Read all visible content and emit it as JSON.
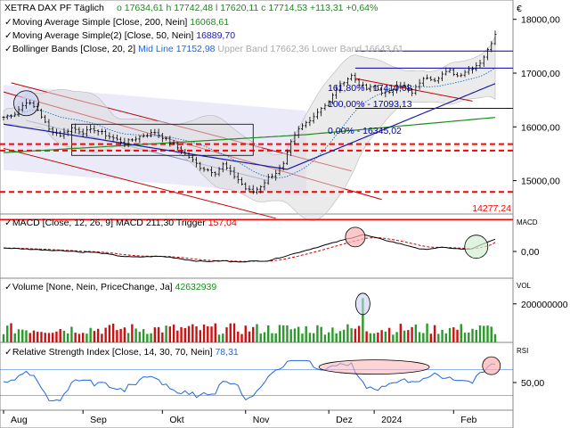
{
  "header": {
    "instrument": "XETRA DAX PF",
    "period": "Täglich",
    "open": "o 17634,61",
    "high": "h 17742,48",
    "low": "l 17620,11",
    "close": "c 17714,53",
    "change": "+113,31",
    "change_pct": "+0,64%",
    "legend": [
      {
        "label": "Moving Average Simple",
        "params": "[Close, 200, Nein]",
        "value": "16068,61",
        "color": "#1a8c1a"
      },
      {
        "label": "Moving Average Simple(2)",
        "params": "[Close, 50, Nein]",
        "value": "16889,70",
        "color": "#1a1aa8"
      },
      {
        "label": "Bollinger Bands",
        "params": "[Close, 20, 2]",
        "mid_label": "Mid Line",
        "mid_value": "17152,98",
        "upper_label": "Upper Band",
        "upper_value": "17662,36",
        "lower_label": "Lower Band",
        "lower_value": "16643,61"
      }
    ],
    "euro_symbol": "€"
  },
  "fib_labels": {
    "level_1618": "161,80% - 17410,08",
    "level_100": "100,00% - 17093,13",
    "level_0": "0,00% - 16345,02"
  },
  "support_label": "14277,24",
  "macd": {
    "title": "MACD",
    "params": "[Close, 12, 26, 9]",
    "macd_label": "MACD",
    "macd_value": "211,30",
    "trigger_label": "Trigger",
    "trigger_value": "157,04",
    "axis_tag": "MACD"
  },
  "volume": {
    "title": "Volume",
    "params": "[None, Nein, PriceChange, Ja]",
    "value": "42632939",
    "axis_tag": "VOL"
  },
  "rsi": {
    "title": "Relative Strength Index",
    "params": "[Close, 14, 30, 70, Nein]",
    "value": "78,31",
    "axis_tag": "RSI"
  },
  "chart_data": {
    "type": "line",
    "x_labels": [
      "Aug",
      "Sep",
      "Okt",
      "Nov",
      "Dez",
      "2024",
      "Feb"
    ],
    "price_axis": {
      "ticks": [
        15000,
        16000,
        17000,
        18000
      ],
      "tick_labels": [
        "15000,00",
        "16000,00",
        "17000,00",
        "18000,00"
      ],
      "range": [
        14380,
        18260
      ]
    },
    "macd_axis": {
      "tick_labels": [
        "0,00"
      ],
      "range": [
        -400,
        400
      ]
    },
    "volume_axis": {
      "tick_labels": [
        "200000000"
      ],
      "range": [
        0,
        250000000
      ]
    },
    "rsi_axis": {
      "tick_labels": [
        "50,00"
      ],
      "range": [
        10,
        90
      ]
    },
    "price_anchors": [
      [
        0,
        16180
      ],
      [
        3,
        16250
      ],
      [
        6,
        16470
      ],
      [
        9,
        16320
      ],
      [
        12,
        15950
      ],
      [
        15,
        15850
      ],
      [
        18,
        15980
      ],
      [
        21,
        15900
      ],
      [
        24,
        15950
      ],
      [
        28,
        15820
      ],
      [
        32,
        15700
      ],
      [
        36,
        15820
      ],
      [
        40,
        15900
      ],
      [
        44,
        15720
      ],
      [
        48,
        15500
      ],
      [
        52,
        15250
      ],
      [
        56,
        15150
      ],
      [
        58,
        15300
      ],
      [
        60,
        15150
      ],
      [
        62,
        15020
      ],
      [
        64,
        14850
      ],
      [
        66,
        14790
      ],
      [
        68,
        14900
      ],
      [
        70,
        15050
      ],
      [
        72,
        15150
      ],
      [
        74,
        15300
      ],
      [
        76,
        15700
      ],
      [
        78,
        15950
      ],
      [
        80,
        16080
      ],
      [
        82,
        16200
      ],
      [
        84,
        16360
      ],
      [
        86,
        16450
      ],
      [
        88,
        16700
      ],
      [
        90,
        16850
      ],
      [
        92,
        16950
      ],
      [
        94,
        16800
      ],
      [
        96,
        16700
      ],
      [
        98,
        16750
      ],
      [
        100,
        16650
      ],
      [
        102,
        16620
      ],
      [
        104,
        16800
      ],
      [
        106,
        16750
      ],
      [
        108,
        16620
      ],
      [
        110,
        16830
      ],
      [
        112,
        16930
      ],
      [
        114,
        16880
      ],
      [
        116,
        16980
      ],
      [
        118,
        17040
      ],
      [
        120,
        16950
      ],
      [
        122,
        17030
      ],
      [
        124,
        17100
      ],
      [
        126,
        17200
      ],
      [
        128,
        17420
      ],
      [
        130,
        17720
      ]
    ],
    "horizontal_levels": [
      {
        "value": 15680,
        "style": "dashed",
        "color": "#ff0000"
      },
      {
        "value": 15560,
        "style": "dashed",
        "color": "#ff0000"
      },
      {
        "value": 14790,
        "style": "dashed",
        "color": "#ff0000"
      },
      {
        "value": 14277,
        "style": "solid",
        "color": "#ff0000"
      }
    ],
    "fibonacci": {
      "levels": [
        17410.08,
        17093.13,
        16345.02
      ],
      "names": [
        "161,80%",
        "100,00%",
        "0,00%"
      ]
    },
    "macd_value": 211.3,
    "trigger_value": 157.04,
    "volume_last": 42632939,
    "rsi_last": 78.31,
    "colors": {
      "price": "#000000",
      "sma200": "#1a8c1a",
      "sma50": "#1a1aa8",
      "bollinger_fill": "#dadada",
      "bollinger_mid": "#0066cc",
      "channel": "#c00000",
      "fib": "#0000aa",
      "support": "#ff0000",
      "volume_up": "#2a9a2a",
      "volume_down": "#cc1111",
      "macd": "#000000",
      "trigger": "#cc0000",
      "highlight": "#ffb0b0"
    }
  }
}
